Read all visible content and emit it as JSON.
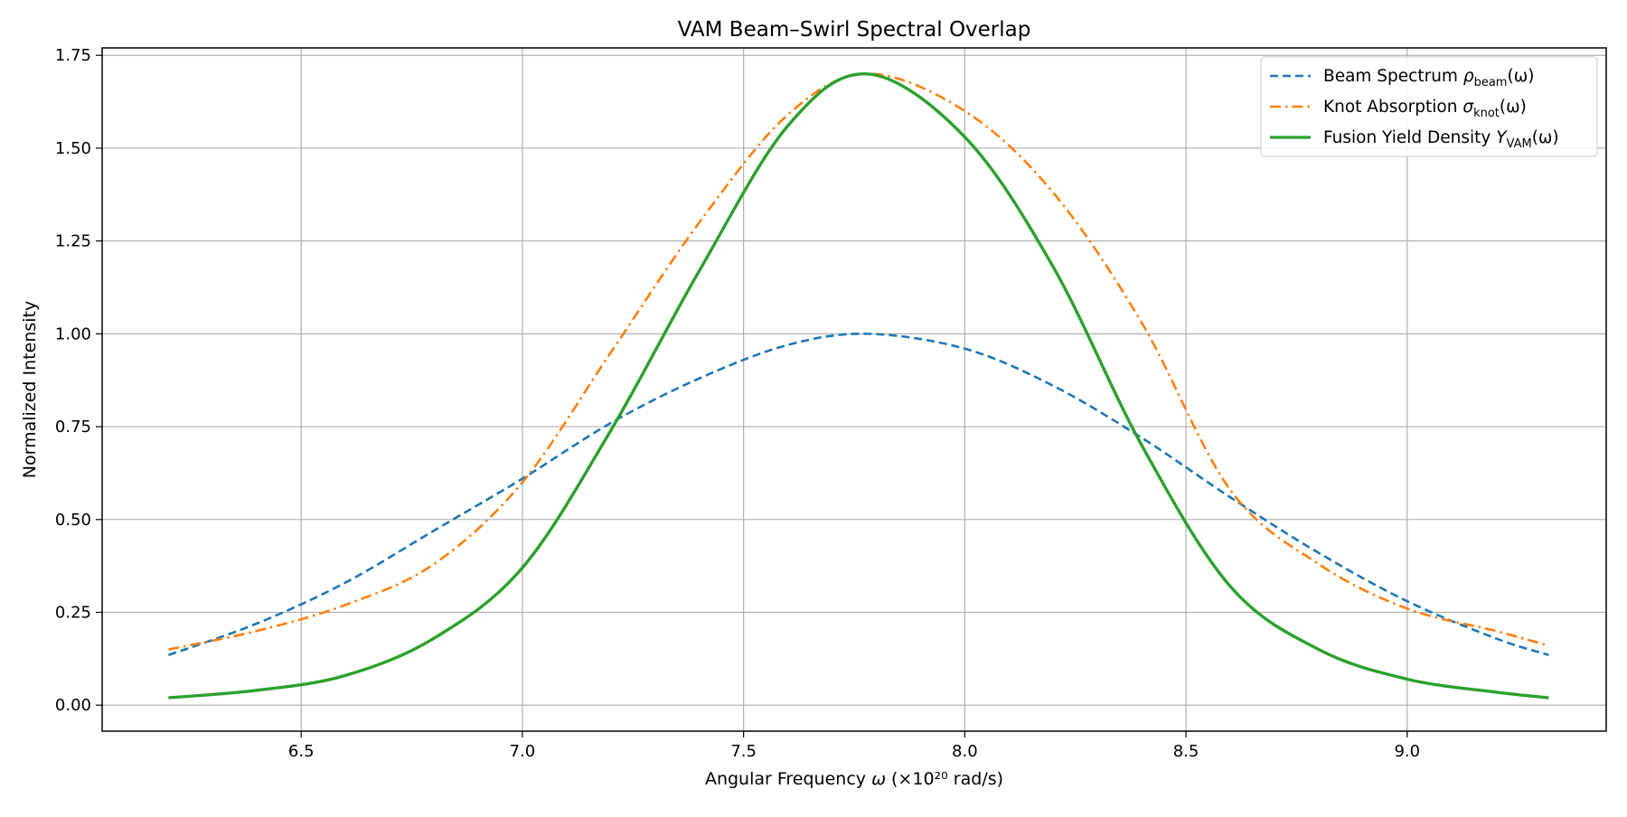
{
  "chart_data": {
    "type": "line",
    "title": "VAM Beam–Swirl Spectral Overlap",
    "xlabel": {
      "prefix": "Angular Frequency ",
      "symbol": "ω",
      "suffix": " (×10²⁰ rad/s)"
    },
    "ylabel": "Normalized Intensity",
    "xlim": [
      6.05,
      9.45
    ],
    "ylim": [
      -0.07,
      1.77
    ],
    "x_ticks": [
      6.5,
      7.0,
      7.5,
      8.0,
      8.5,
      9.0
    ],
    "x_tick_labels": [
      "6.5",
      "7.0",
      "7.5",
      "8.0",
      "8.5",
      "9.0"
    ],
    "y_ticks": [
      0.0,
      0.25,
      0.5,
      0.75,
      1.0,
      1.25,
      1.5,
      1.75
    ],
    "y_tick_labels": [
      "0.00",
      "0.25",
      "0.50",
      "0.75",
      "1.00",
      "1.25",
      "1.50",
      "1.75"
    ],
    "grid": true,
    "legend_position": "top-right",
    "x": [
      6.2,
      6.4,
      6.6,
      6.8,
      7.0,
      7.2,
      7.4,
      7.6,
      7.78,
      8.0,
      8.2,
      8.4,
      8.6,
      8.8,
      9.0,
      9.2,
      9.32
    ],
    "series": [
      {
        "name": "Beam Spectrum",
        "legend_prefix": "Beam Spectrum ",
        "legend_symbol": "ρ",
        "legend_subscript": "beam",
        "legend_suffix": "(ω)",
        "color": "#1f77b4",
        "style": "dashed",
        "values": [
          0.135,
          0.22,
          0.33,
          0.47,
          0.61,
          0.76,
          0.88,
          0.97,
          1.0,
          0.96,
          0.86,
          0.72,
          0.56,
          0.41,
          0.28,
          0.18,
          0.135
        ]
      },
      {
        "name": "Knot Absorption",
        "legend_prefix": "Knot Absorption ",
        "legend_symbol": "σ",
        "legend_subscript": "knot",
        "legend_suffix": "(ω)",
        "color": "#ff7f0e",
        "style": "dashdot",
        "values": [
          0.15,
          0.2,
          0.27,
          0.38,
          0.6,
          0.95,
          1.3,
          1.59,
          1.7,
          1.6,
          1.38,
          1.03,
          0.58,
          0.38,
          0.26,
          0.2,
          0.16
        ]
      },
      {
        "name": "Fusion Yield Density",
        "legend_prefix": "Fusion Yield Density ",
        "legend_symbol": "Y",
        "legend_subscript": "VAM",
        "legend_suffix": "(ω)",
        "color": "#2ca02c",
        "style": "solid",
        "values": [
          0.02,
          0.04,
          0.08,
          0.18,
          0.37,
          0.74,
          1.17,
          1.56,
          1.7,
          1.53,
          1.18,
          0.7,
          0.32,
          0.15,
          0.07,
          0.035,
          0.02
        ]
      }
    ]
  }
}
